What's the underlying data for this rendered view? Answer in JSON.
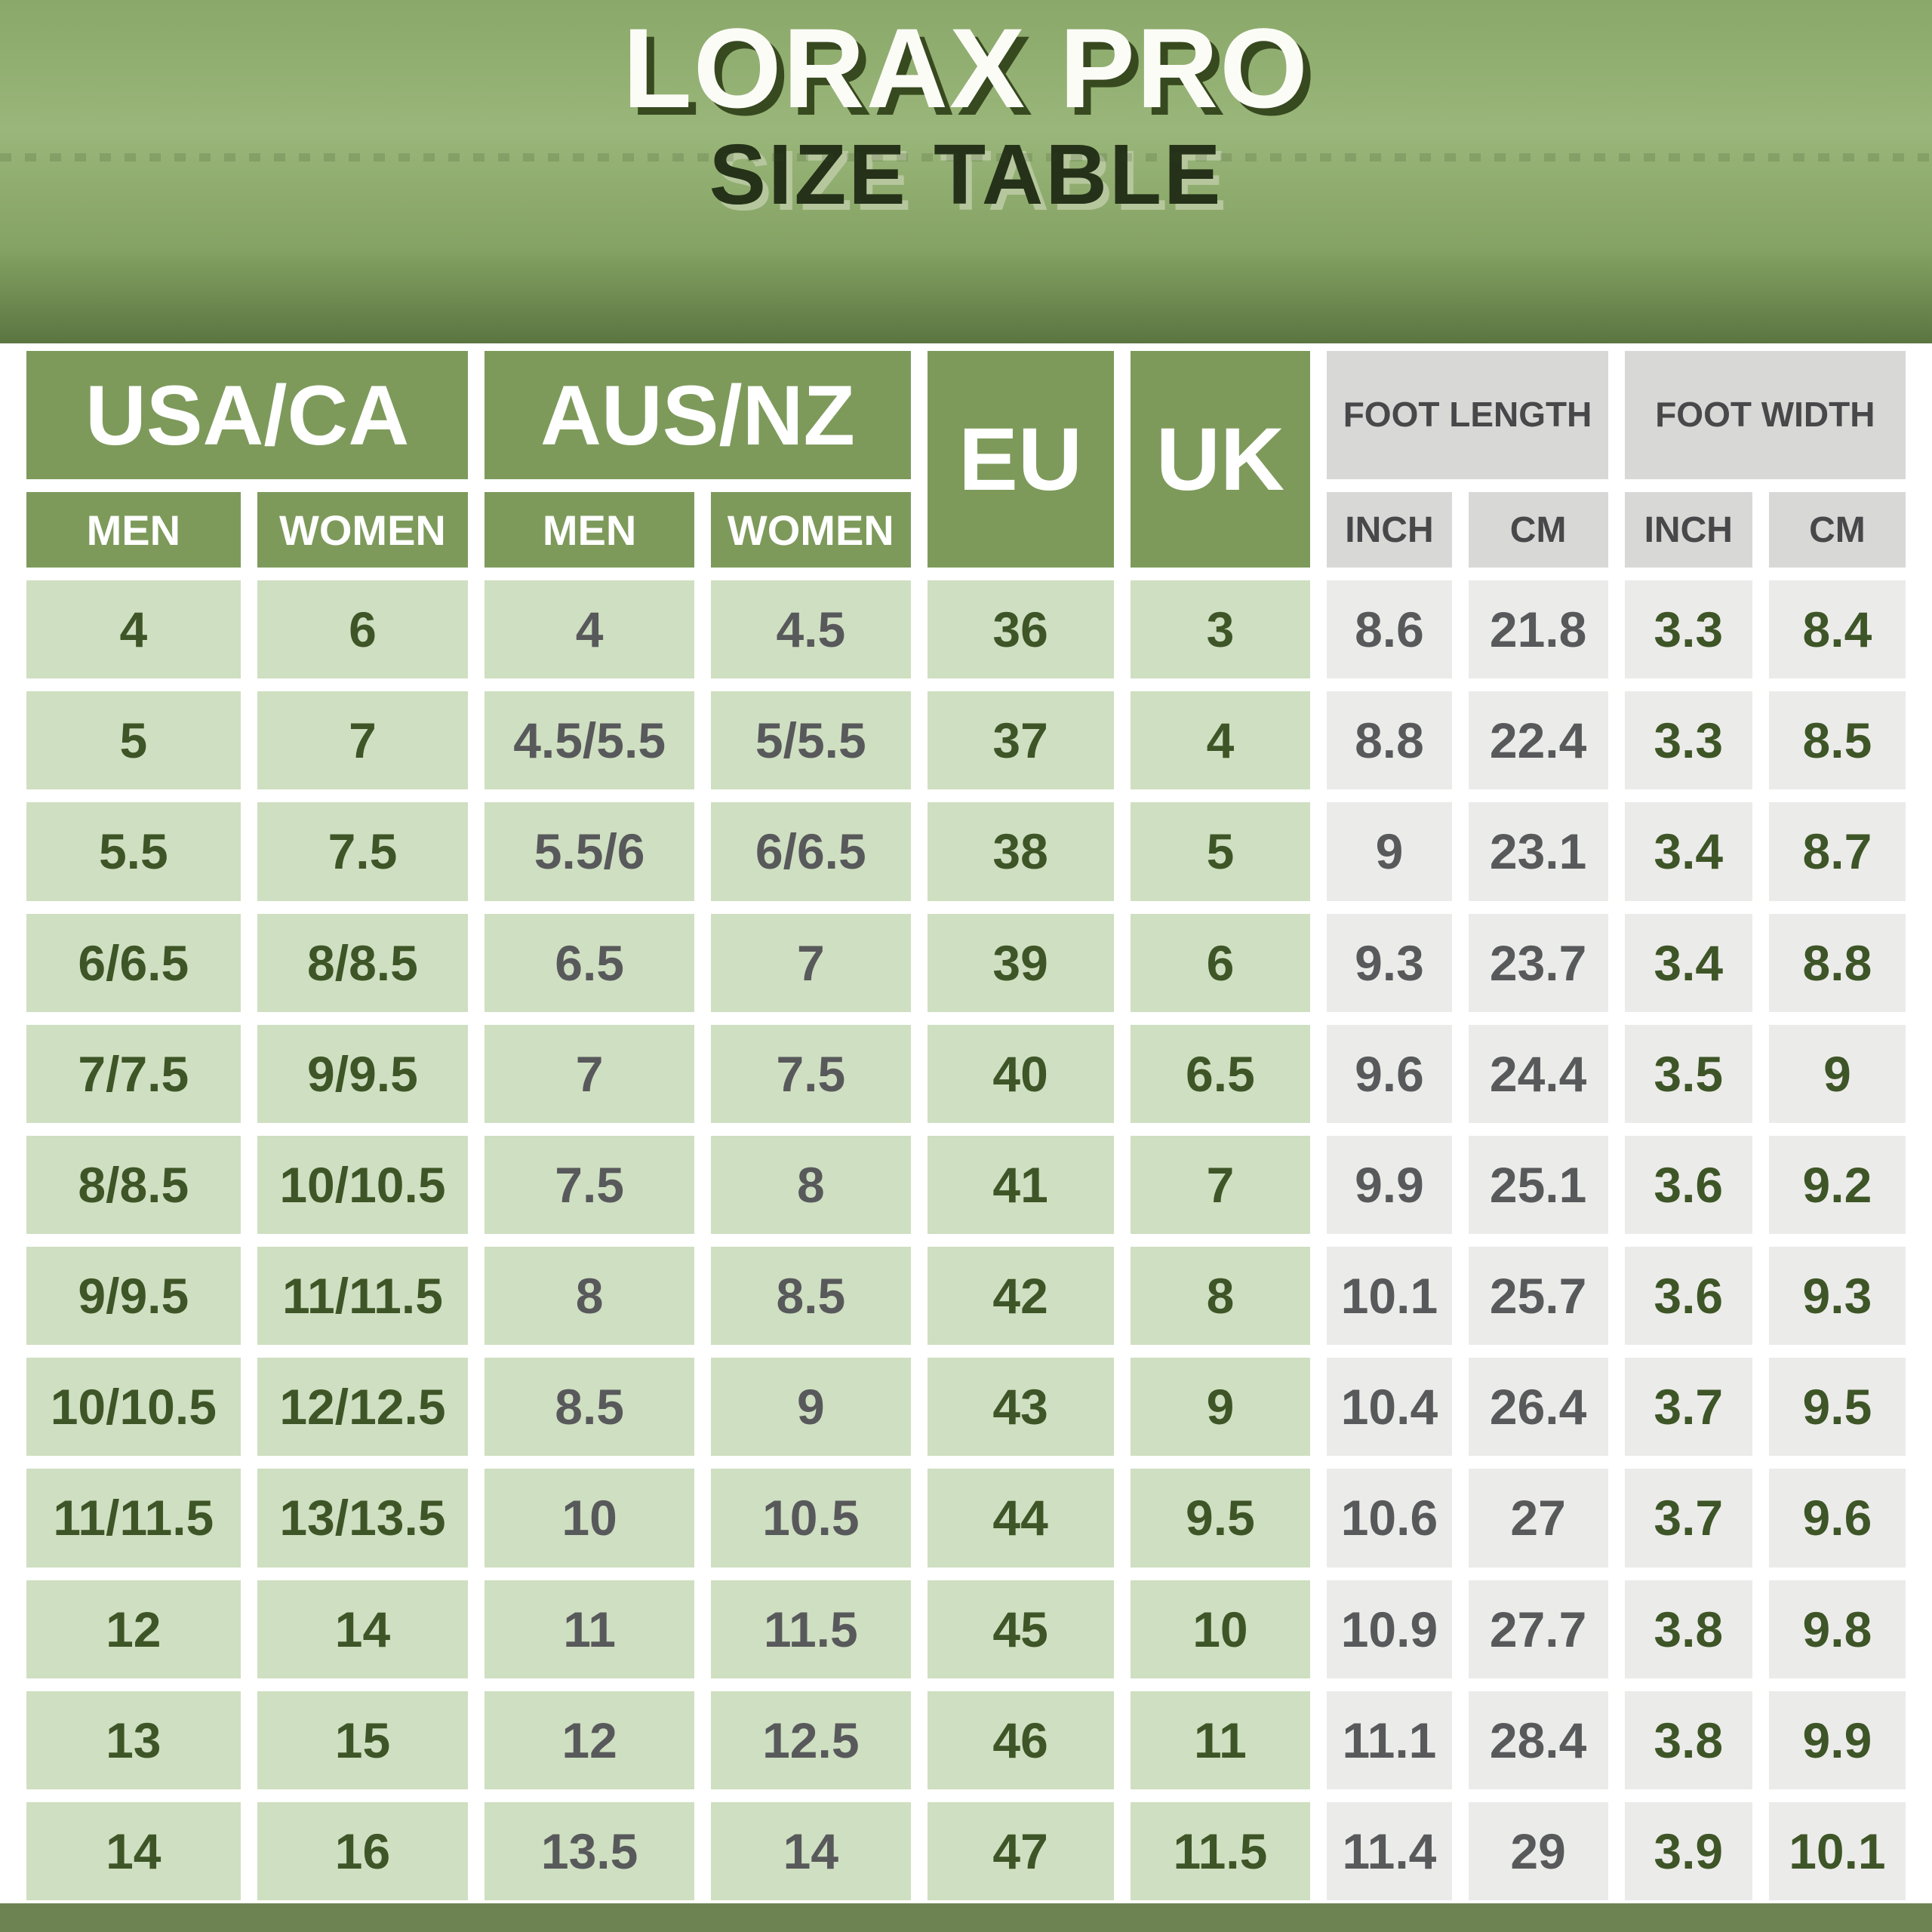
{
  "title": {
    "line1": "LORAX PRO",
    "line2": "SIZE TABLE"
  },
  "table": {
    "groups": [
      {
        "label": "USA/CA",
        "sub": [
          "MEN",
          "WOMEN"
        ]
      },
      {
        "label": "AUS/NZ",
        "sub": [
          "MEN",
          "WOMEN"
        ]
      },
      {
        "label": "EU"
      },
      {
        "label": "UK"
      },
      {
        "label": "FOOT LENGTH",
        "sub": [
          "INCH",
          "CM"
        ]
      },
      {
        "label": "FOOT WIDTH",
        "sub": [
          "INCH",
          "CM"
        ]
      }
    ],
    "rows": [
      [
        "4",
        "6",
        "4",
        "4.5",
        "36",
        "3",
        "8.6",
        "21.8",
        "3.3",
        "8.4"
      ],
      [
        "5",
        "7",
        "4.5/5.5",
        "5/5.5",
        "37",
        "4",
        "8.8",
        "22.4",
        "3.3",
        "8.5"
      ],
      [
        "5.5",
        "7.5",
        "5.5/6",
        "6/6.5",
        "38",
        "5",
        "9",
        "23.1",
        "3.4",
        "8.7"
      ],
      [
        "6/6.5",
        "8/8.5",
        "6.5",
        "7",
        "39",
        "6",
        "9.3",
        "23.7",
        "3.4",
        "8.8"
      ],
      [
        "7/7.5",
        "9/9.5",
        "7",
        "7.5",
        "40",
        "6.5",
        "9.6",
        "24.4",
        "3.5",
        "9"
      ],
      [
        "8/8.5",
        "10/10.5",
        "7.5",
        "8",
        "41",
        "7",
        "9.9",
        "25.1",
        "3.6",
        "9.2"
      ],
      [
        "9/9.5",
        "11/11.5",
        "8",
        "8.5",
        "42",
        "8",
        "10.1",
        "25.7",
        "3.6",
        "9.3"
      ],
      [
        "10/10.5",
        "12/12.5",
        "8.5",
        "9",
        "43",
        "9",
        "10.4",
        "26.4",
        "3.7",
        "9.5"
      ],
      [
        "11/11.5",
        "13/13.5",
        "10",
        "10.5",
        "44",
        "9.5",
        "10.6",
        "27",
        "3.7",
        "9.6"
      ],
      [
        "12",
        "14",
        "11",
        "11.5",
        "45",
        "10",
        "10.9",
        "27.7",
        "3.8",
        "9.8"
      ],
      [
        "13",
        "15",
        "12",
        "12.5",
        "46",
        "11",
        "11.1",
        "28.4",
        "3.8",
        "9.9"
      ],
      [
        "14",
        "16",
        "13.5",
        "14",
        "47",
        "11.5",
        "11.4",
        "29",
        "3.9",
        "10.1"
      ]
    ]
  },
  "colors": {
    "bandTop": "#8aa86a",
    "bandMid": "#9ab67a",
    "bandLow": "#85a364",
    "bandBottom": "#5b7541",
    "titleWhite": "#fcfcf7",
    "titleShadowDark": "#37491f",
    "titleDark": "#253219",
    "titleShadowLight": "#b6c69d",
    "headerGreen": "#7d9a5b",
    "headGray": "#d8d8d6",
    "headGrayText": "#48484a",
    "cellGreen": "#cfdfc1",
    "cellGray": "#ebebe9",
    "textGreen": "#3e5527",
    "textGray": "#58595b",
    "footerGreen": "#6d8452"
  }
}
